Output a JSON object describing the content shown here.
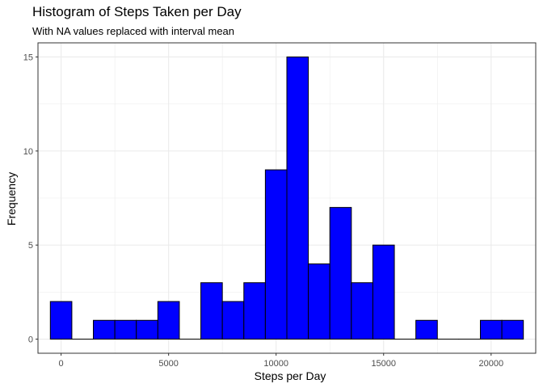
{
  "chart_data": {
    "type": "bar",
    "title": "Histogram of Steps Taken per Day",
    "subtitle": "With NA values replaced with interval mean",
    "xlabel": "Steps per Day",
    "ylabel": "Frequency",
    "bin_width": 1000,
    "bins": [
      {
        "x": 0,
        "count": 2
      },
      {
        "x": 1000,
        "count": 0
      },
      {
        "x": 2000,
        "count": 1
      },
      {
        "x": 3000,
        "count": 1
      },
      {
        "x": 4000,
        "count": 1
      },
      {
        "x": 5000,
        "count": 2
      },
      {
        "x": 6000,
        "count": 0
      },
      {
        "x": 7000,
        "count": 3
      },
      {
        "x": 8000,
        "count": 2
      },
      {
        "x": 9000,
        "count": 3
      },
      {
        "x": 10000,
        "count": 9
      },
      {
        "x": 11000,
        "count": 15
      },
      {
        "x": 12000,
        "count": 4
      },
      {
        "x": 13000,
        "count": 7
      },
      {
        "x": 14000,
        "count": 3
      },
      {
        "x": 15000,
        "count": 5
      },
      {
        "x": 16000,
        "count": 0
      },
      {
        "x": 17000,
        "count": 1
      },
      {
        "x": 18000,
        "count": 0
      },
      {
        "x": 19000,
        "count": 0
      },
      {
        "x": 20000,
        "count": 1
      },
      {
        "x": 21000,
        "count": 1
      }
    ],
    "x_ticks": [
      "0",
      "5000",
      "10000",
      "15000",
      "20000"
    ],
    "x_tick_values": [
      0,
      5000,
      10000,
      15000,
      20000
    ],
    "y_ticks": [
      "0",
      "5",
      "10",
      "15"
    ],
    "y_tick_values": [
      0,
      5,
      10,
      15
    ],
    "xlim": [
      -1075,
      22075
    ],
    "ylim": [
      -0.75,
      15.75
    ],
    "grid": true,
    "fill_color": "#0000FF",
    "outline_color": "#000000",
    "grid_color": "#EBEBEB",
    "panel_border_color": "#333333"
  }
}
